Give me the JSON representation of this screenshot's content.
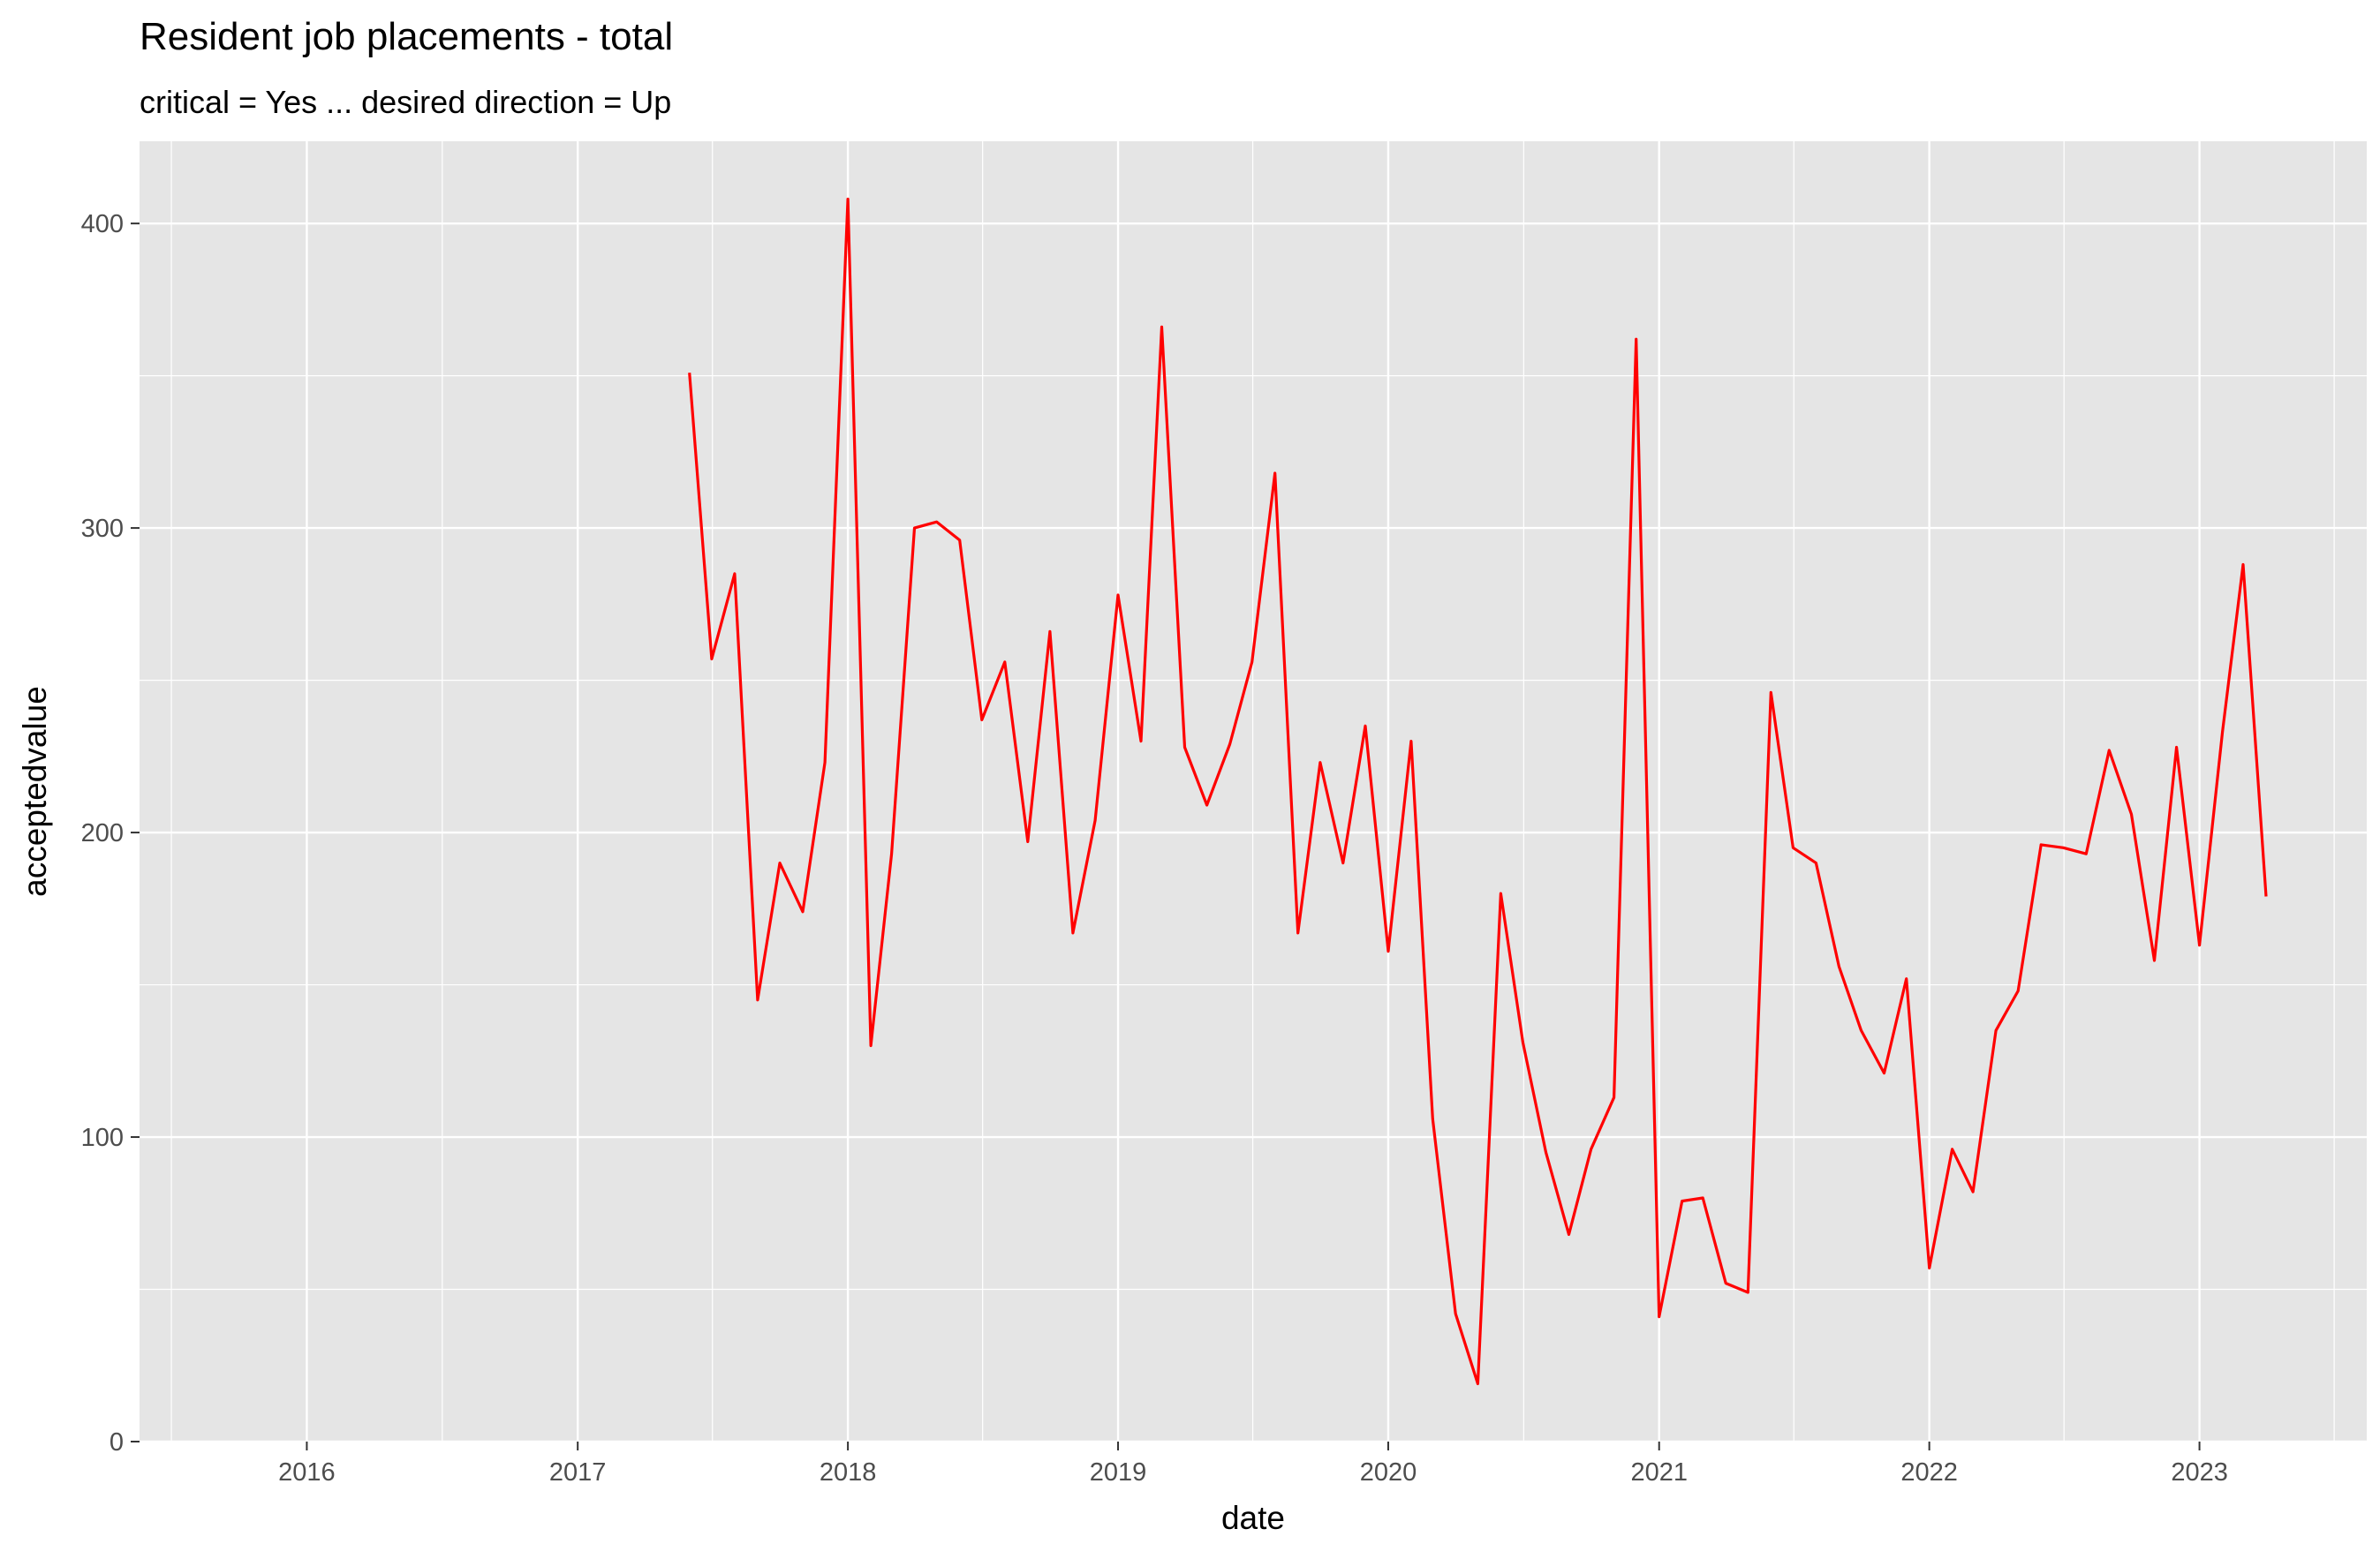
{
  "chart_data": {
    "type": "line",
    "title": "Resident job placements - total",
    "subtitle": "critical = Yes ... desired direction = Up",
    "xlabel": "date",
    "ylabel": "acceptedvalue",
    "xlim": [
      "2015-05-20",
      "2023-08-15"
    ],
    "ylim": [
      0,
      427
    ],
    "x_ticks": [
      "2016",
      "2017",
      "2018",
      "2019",
      "2020",
      "2021",
      "2022",
      "2023"
    ],
    "y_ticks": [
      "0",
      "100",
      "200",
      "300",
      "400"
    ],
    "grid": true,
    "panel_background": "#e5e5e5",
    "series": [
      {
        "color": "#ff0000",
        "x": [
          "2017-06-01",
          "2017-07-01",
          "2017-08-01",
          "2017-09-01",
          "2017-10-01",
          "2017-11-01",
          "2017-12-01",
          "2018-01-01",
          "2018-02-01",
          "2018-03-01",
          "2018-04-01",
          "2018-05-01",
          "2018-06-01",
          "2018-07-01",
          "2018-08-01",
          "2018-09-01",
          "2018-10-01",
          "2018-11-01",
          "2018-12-01",
          "2019-01-01",
          "2019-02-01",
          "2019-03-01",
          "2019-04-01",
          "2019-05-01",
          "2019-06-01",
          "2019-07-01",
          "2019-08-01",
          "2019-09-01",
          "2019-10-01",
          "2019-11-01",
          "2019-12-01",
          "2020-01-01",
          "2020-02-01",
          "2020-03-01",
          "2020-04-01",
          "2020-05-01",
          "2020-06-01",
          "2020-07-01",
          "2020-08-01",
          "2020-09-01",
          "2020-10-01",
          "2020-11-01",
          "2020-12-01",
          "2021-01-01",
          "2021-02-01",
          "2021-03-01",
          "2021-04-01",
          "2021-05-01",
          "2021-06-01",
          "2021-07-01",
          "2021-08-01",
          "2021-09-01",
          "2021-10-01",
          "2021-11-01",
          "2021-12-01",
          "2022-01-01",
          "2022-02-01",
          "2022-03-01",
          "2022-04-01",
          "2022-05-01",
          "2022-06-01",
          "2022-07-01",
          "2022-08-01",
          "2022-09-01",
          "2022-10-01",
          "2022-11-01",
          "2022-12-01",
          "2023-01-01",
          "2023-02-01",
          "2023-03-01",
          "2023-04-01"
        ],
        "values": [
          351,
          257,
          285,
          145,
          190,
          174,
          223,
          408,
          130,
          193,
          300,
          302,
          296,
          237,
          256,
          197,
          266,
          167,
          204,
          278,
          230,
          366,
          228,
          209,
          229,
          256,
          318,
          167,
          223,
          190,
          235,
          161,
          230,
          106,
          42,
          19,
          180,
          131,
          95,
          68,
          96,
          113,
          362,
          41,
          79,
          80,
          52,
          49,
          246,
          195,
          190,
          156,
          135,
          121,
          152,
          57,
          96,
          82,
          135,
          148,
          196,
          195,
          193,
          227,
          206,
          158,
          228,
          163,
          233,
          288,
          179
        ]
      }
    ]
  }
}
